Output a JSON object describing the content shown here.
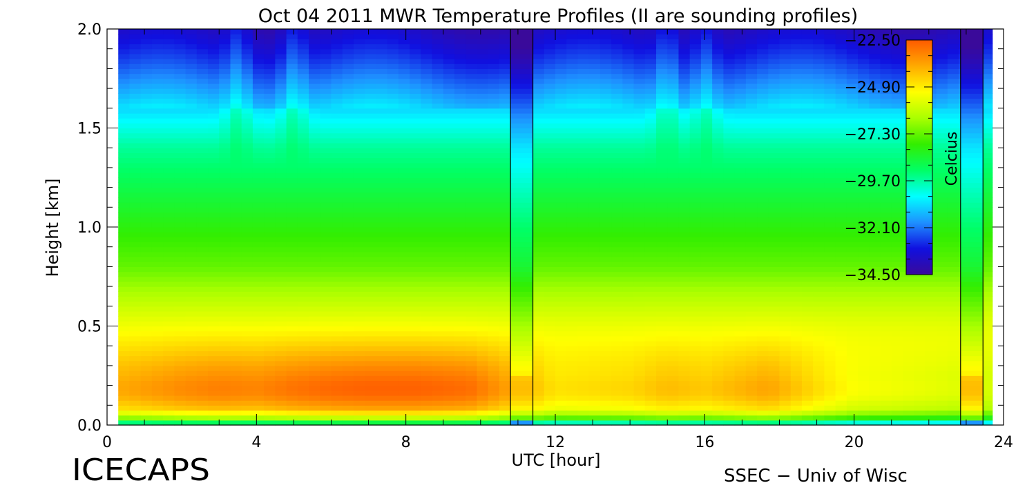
{
  "chart_data": {
    "type": "heatmap",
    "title": "Oct 04 2011 MWR Temperature Profiles (II are sounding profiles)",
    "xlabel": "UTC [hour]",
    "ylabel": "Height [km]",
    "xlim": [
      0,
      24
    ],
    "ylim": [
      0,
      2.0
    ],
    "x_ticks": [
      0,
      4,
      8,
      12,
      16,
      20,
      24
    ],
    "x_tick_labels": [
      "0",
      "4",
      "8",
      "12",
      "16",
      "20",
      "24"
    ],
    "y_ticks": [
      0.0,
      0.5,
      1.0,
      1.5,
      2.0
    ],
    "y_tick_labels": [
      "0.0",
      "0.5",
      "1.0",
      "1.5",
      "2.0"
    ],
    "data_x_range": [
      0.3,
      23.7
    ],
    "sounding_profiles": [
      {
        "x_start": 10.8,
        "x_end": 11.4
      },
      {
        "x_start": 22.85,
        "x_end": 23.45
      }
    ],
    "colorbar": {
      "label": "Celcius",
      "min": -34.5,
      "max": -22.5,
      "tick_values": [
        -22.5,
        -24.9,
        -27.3,
        -29.7,
        -32.1,
        -34.5
      ],
      "tick_labels": [
        "−22.50",
        "−24.90",
        "−27.30",
        "−29.70",
        "−32.10",
        "−34.50"
      ],
      "colors": [
        "#3a0a9a",
        "#1010e0",
        "#1e90ff",
        "#00ffff",
        "#00ff66",
        "#33ee00",
        "#aaff00",
        "#ffff00",
        "#ffaa00",
        "#ff5a00"
      ]
    },
    "profile_height_km": [
      0.0,
      0.03,
      0.08,
      0.15,
      0.2,
      0.3,
      0.45,
      0.6,
      0.8,
      1.0,
      1.2,
      1.4,
      1.55,
      1.7,
      1.85,
      2.0
    ],
    "base_profile_c": [
      -29.0,
      -27.0,
      -24.5,
      -23.6,
      -23.5,
      -24.0,
      -25.0,
      -26.0,
      -27.3,
      -28.0,
      -28.8,
      -29.6,
      -30.6,
      -31.8,
      -32.9,
      -33.8
    ],
    "low_level_warmth_c_by_hour": [
      [
        0.3,
        -0.3
      ],
      [
        2.0,
        0.2
      ],
      [
        3.0,
        0.4
      ],
      [
        4.0,
        0.3
      ],
      [
        5.0,
        0.6
      ],
      [
        6.0,
        0.8
      ],
      [
        7.0,
        0.9
      ],
      [
        8.3,
        0.9
      ],
      [
        9.7,
        0.7
      ],
      [
        10.8,
        -0.2
      ],
      [
        12.0,
        -1.2
      ],
      [
        14.0,
        -1.0
      ],
      [
        15.0,
        -0.6
      ],
      [
        16.0,
        -0.8
      ],
      [
        17.7,
        -0.2
      ],
      [
        19.0,
        -1.1
      ],
      [
        20.0,
        -1.7
      ],
      [
        22.0,
        -2.0
      ],
      [
        23.7,
        -2.3
      ]
    ],
    "upper_level_ridges_hour": [
      3.5,
      5.0,
      15.0,
      16.0
    ]
  },
  "footer": {
    "left": "ICECAPS",
    "right": "SSEC − Univ of Wisc"
  }
}
